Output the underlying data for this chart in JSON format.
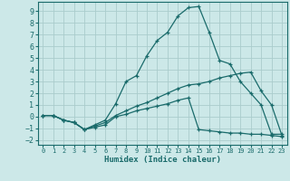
{
  "xlabel": "Humidex (Indice chaleur)",
  "background_color": "#cce8e8",
  "grid_color": "#aacccc",
  "line_color": "#1a6b6b",
  "xlim": [
    -0.5,
    23.5
  ],
  "ylim": [
    -2.4,
    9.8
  ],
  "xticks": [
    0,
    1,
    2,
    3,
    4,
    5,
    6,
    7,
    8,
    9,
    10,
    11,
    12,
    13,
    14,
    15,
    16,
    17,
    18,
    19,
    20,
    21,
    22,
    23
  ],
  "yticks": [
    -2,
    -1,
    0,
    1,
    2,
    3,
    4,
    5,
    6,
    7,
    8,
    9
  ],
  "curve1_x": [
    0,
    1,
    2,
    3,
    4,
    5,
    6,
    7,
    8,
    9,
    10,
    11,
    12,
    13,
    14,
    15,
    16,
    17,
    18,
    19,
    20,
    21,
    22,
    23
  ],
  "curve1_y": [
    0.1,
    0.1,
    -0.3,
    -0.5,
    -1.1,
    -0.7,
    -0.3,
    1.1,
    3.0,
    3.5,
    5.2,
    6.5,
    7.2,
    8.6,
    9.3,
    9.4,
    7.2,
    4.8,
    4.5,
    3.0,
    2.0,
    1.0,
    -1.5,
    -1.5
  ],
  "curve2_x": [
    0,
    1,
    2,
    3,
    4,
    5,
    6,
    7,
    8,
    9,
    10,
    11,
    12,
    13,
    14,
    15,
    16,
    17,
    18,
    19,
    20,
    21,
    22,
    23
  ],
  "curve2_y": [
    0.1,
    0.1,
    -0.3,
    -0.5,
    -1.1,
    -0.9,
    -0.7,
    0.0,
    0.2,
    0.5,
    0.7,
    0.9,
    1.1,
    1.4,
    1.6,
    -1.1,
    -1.2,
    -1.3,
    -1.4,
    -1.4,
    -1.5,
    -1.5,
    -1.6,
    -1.7
  ],
  "curve3_x": [
    0,
    1,
    2,
    3,
    4,
    5,
    6,
    7,
    8,
    9,
    10,
    11,
    12,
    13,
    14,
    15,
    16,
    17,
    18,
    19,
    20,
    21,
    22,
    23
  ],
  "curve3_y": [
    0.1,
    0.1,
    -0.3,
    -0.5,
    -1.1,
    -0.8,
    -0.5,
    0.1,
    0.5,
    0.9,
    1.2,
    1.6,
    2.0,
    2.4,
    2.7,
    2.8,
    3.0,
    3.3,
    3.5,
    3.7,
    3.8,
    2.2,
    1.0,
    -1.6
  ]
}
